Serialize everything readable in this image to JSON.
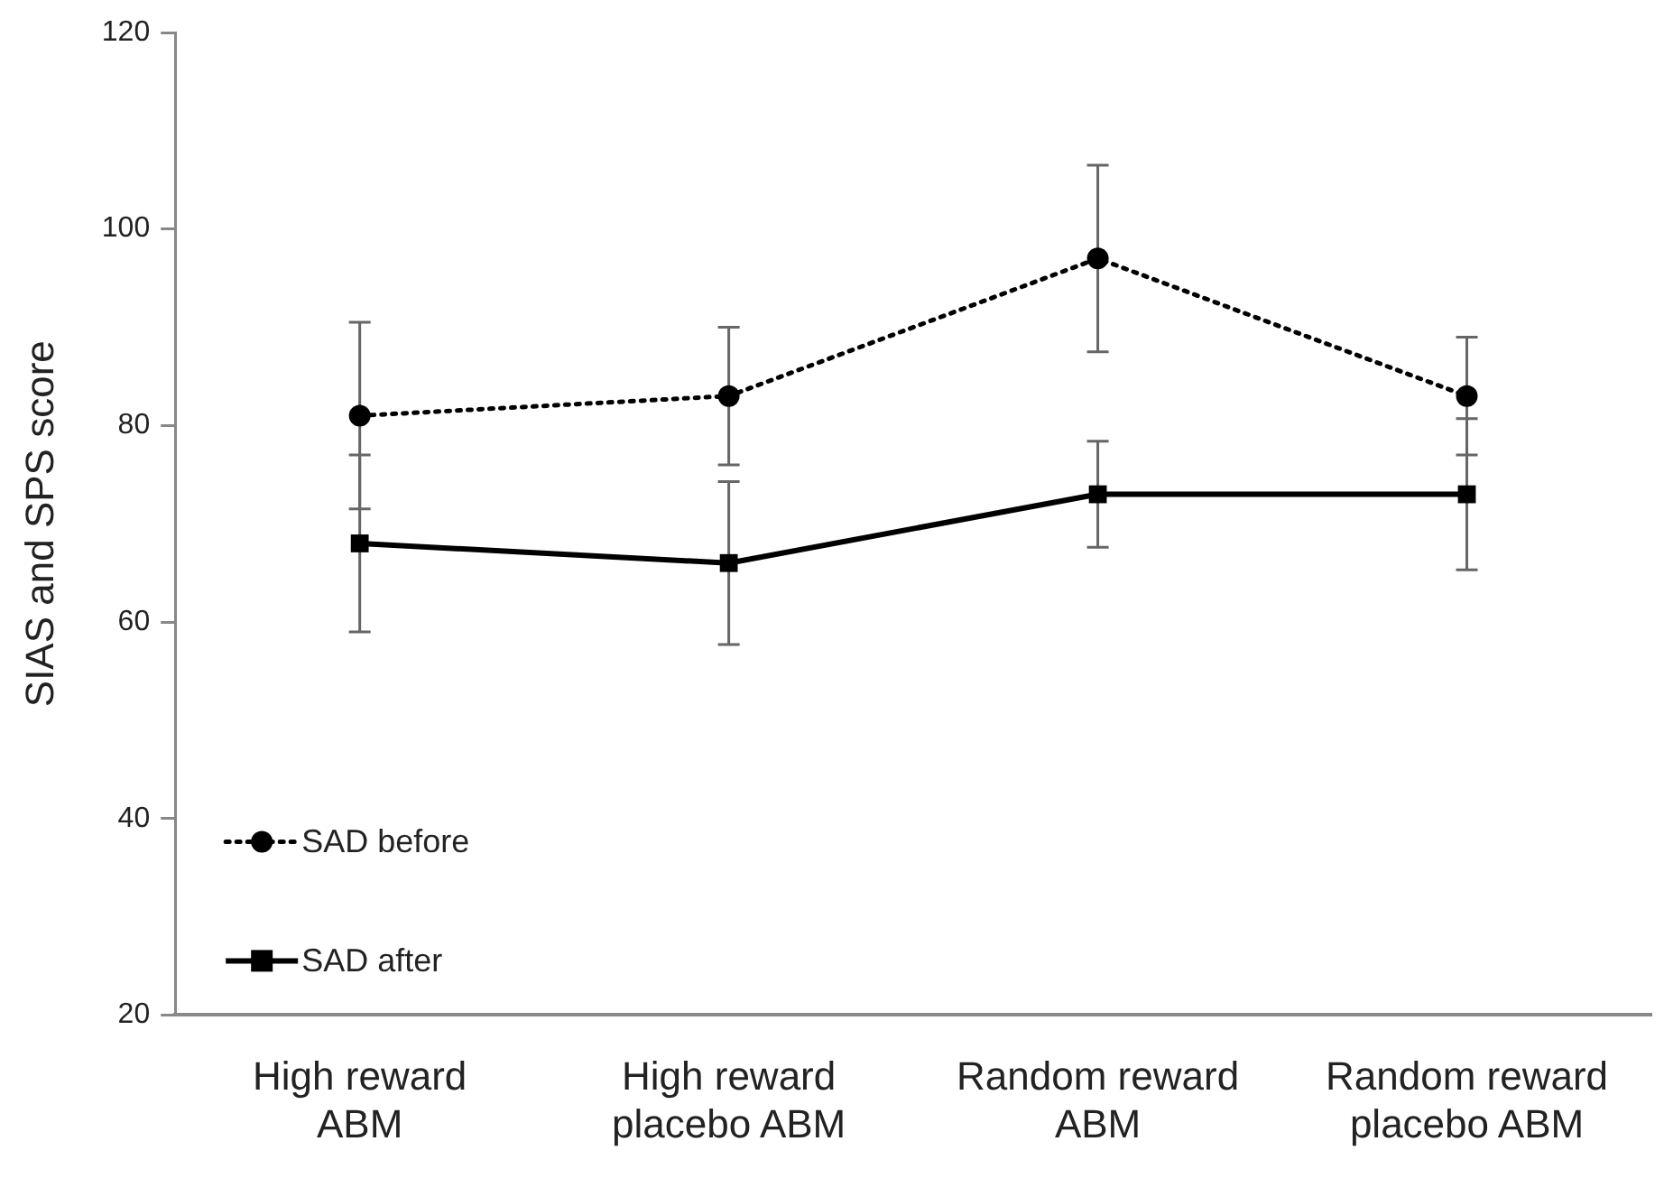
{
  "chart_data": {
    "type": "line",
    "ylabel": "SIAS and SPS score",
    "categories": [
      "High reward ABM",
      "High reward placebo ABM",
      "Random reward ABM",
      "Random reward placebo ABM"
    ],
    "series": [
      {
        "name": "SAD before",
        "color": "#000000",
        "values": [
          81,
          83,
          97,
          83
        ],
        "errors": [
          9.5,
          7,
          9.5,
          6
        ],
        "marker": "circle",
        "line_style": "dotted"
      },
      {
        "name": "SAD after",
        "color": "#000000",
        "values": [
          68,
          66,
          73,
          73
        ],
        "errors": [
          9,
          8.3,
          5.4,
          7.7
        ],
        "marker": "square",
        "line_style": "solid"
      }
    ],
    "ylim": [
      20,
      120
    ],
    "yticks": [
      20,
      40,
      60,
      80,
      100,
      120
    ],
    "grid": false,
    "legend": "bottom left"
  }
}
